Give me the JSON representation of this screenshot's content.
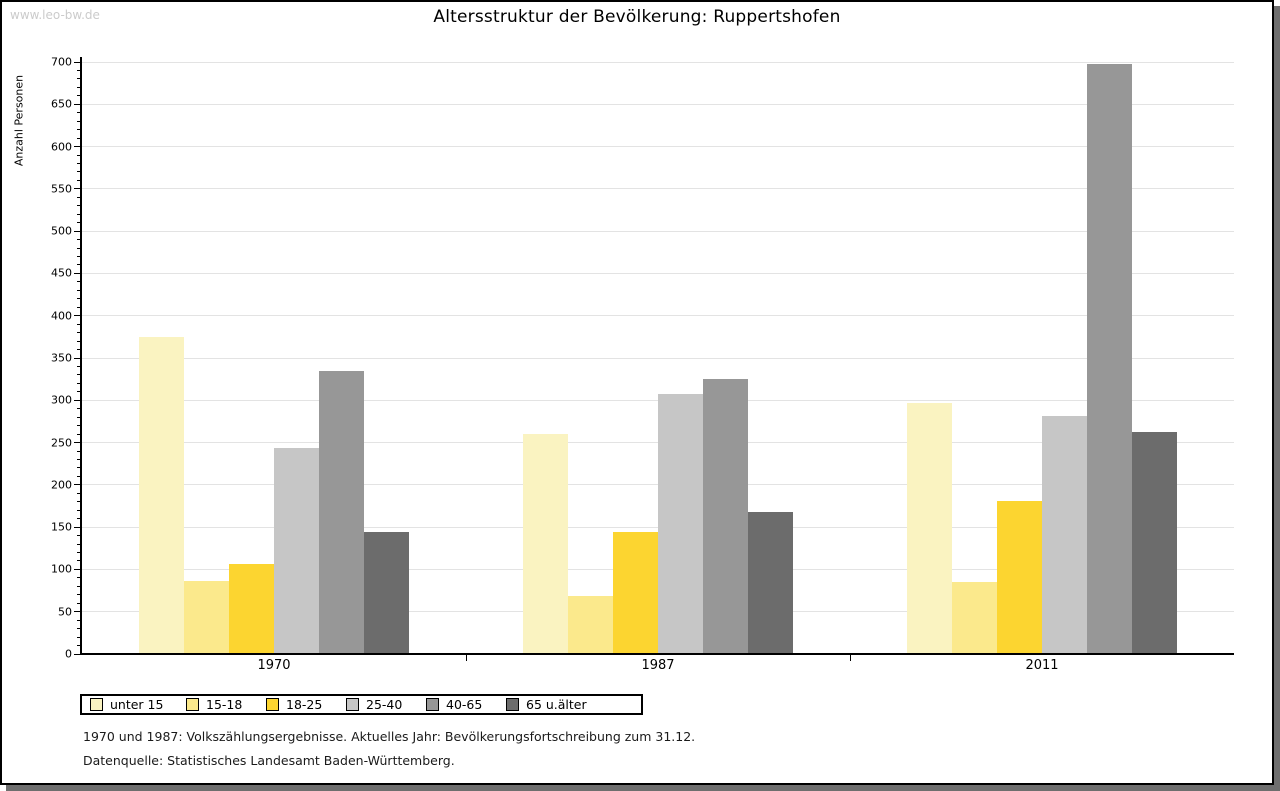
{
  "watermark": "www.leo-bw.de",
  "header": {
    "title": "Altersstruktur der Bevölkerung: Ruppertshofen"
  },
  "footer": {
    "line1": "1970 und 1987: Volkszählungsergebnisse. Aktuelles Jahr: Bevölkerungsfortschreibung zum 31.12.",
    "line2": "Datenquelle: Statistisches Landesamt Baden-Württemberg."
  },
  "chart_data": {
    "type": "bar",
    "title": "Altersstruktur der Bevölkerung: Ruppertshofen",
    "xlabel": "",
    "ylabel": "Anzahl Personen",
    "categories": [
      "1970",
      "1987",
      "2011"
    ],
    "series": [
      {
        "name": "unter 15",
        "color": "#faf3c1",
        "values": [
          375,
          260,
          297
        ]
      },
      {
        "name": "15-18",
        "color": "#fbe98c",
        "values": [
          86,
          69,
          85
        ]
      },
      {
        "name": "18-25",
        "color": "#fcd530",
        "values": [
          106,
          144,
          181
        ]
      },
      {
        "name": "25-40",
        "color": "#c6c6c6",
        "values": [
          244,
          307,
          281
        ]
      },
      {
        "name": "40-65",
        "color": "#979797",
        "values": [
          335,
          325,
          698
        ]
      },
      {
        "name": "65 u.älter",
        "color": "#6c6c6c",
        "values": [
          144,
          168,
          262
        ]
      }
    ],
    "ylim": [
      0,
      700
    ],
    "ytick_step": 50,
    "ytick_minor_step": 10,
    "ytick_labels": [
      "0",
      "50",
      "100",
      "150",
      "200",
      "250",
      "300",
      "350",
      "400",
      "450",
      "500",
      "550",
      "600",
      "650",
      "700"
    ],
    "grid": true,
    "gridline_color": "#e3e3e3",
    "legend_position": "bottom-left"
  }
}
